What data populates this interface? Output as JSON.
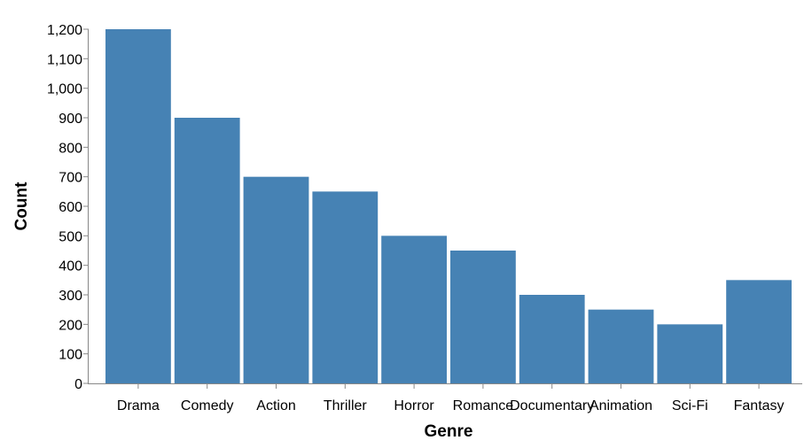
{
  "chart_data": {
    "type": "bar",
    "categories": [
      "Drama",
      "Comedy",
      "Action",
      "Thriller",
      "Horror",
      "Romance",
      "Documentary",
      "Animation",
      "Sci-Fi",
      "Fantasy"
    ],
    "values": [
      1200,
      900,
      700,
      650,
      500,
      450,
      300,
      250,
      200,
      350
    ],
    "xlabel": "Genre",
    "ylabel": "Count",
    "ylim": [
      0,
      1200
    ],
    "yticks": [
      0,
      100,
      200,
      300,
      400,
      500,
      600,
      700,
      800,
      900,
      1000,
      1100,
      1200
    ],
    "ytick_labels": [
      "0",
      "100",
      "200",
      "300",
      "400",
      "500",
      "600",
      "700",
      "800",
      "900",
      "1,000",
      "1,100",
      "1,200"
    ],
    "grid": false,
    "bar_color": "#4682b4",
    "axis_color": "#888888"
  }
}
